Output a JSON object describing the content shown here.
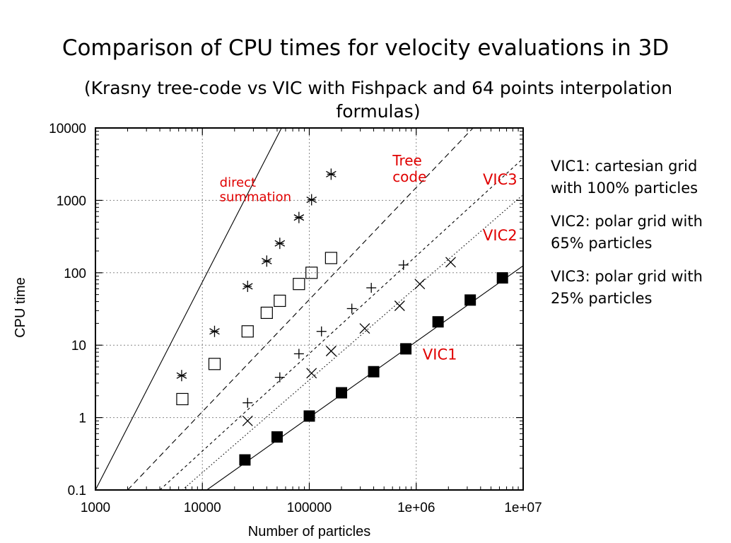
{
  "slide": {
    "title": "Comparison of CPU times for velocity evaluations in 3D",
    "subtitle": "(Krasny tree-code vs VIC with Fishpack and 64 points interpolation formulas)",
    "notes": [
      "VIC1: cartesian grid with 100% particles",
      "VIC2: polar grid with 65% particles",
      "VIC3: polar grid with 25% particles"
    ]
  },
  "colors": {
    "annotation": "#e00000",
    "axis": "#000000",
    "grid": "#888888"
  },
  "chart_data": {
    "type": "scatter",
    "xlabel": "Number of particles",
    "ylabel": "CPU time",
    "xscale": "log",
    "yscale": "log",
    "xlim": [
      1000,
      10000000
    ],
    "ylim": [
      0.1,
      10000
    ],
    "x_ticks": [
      1000,
      10000,
      100000,
      1000000,
      10000000
    ],
    "x_tick_labels": [
      "1000",
      "10000",
      "100000",
      "1e+06",
      "1e+07"
    ],
    "y_ticks": [
      0.1,
      1,
      10,
      100,
      1000,
      10000
    ],
    "y_tick_labels": [
      "0.1",
      "1",
      "10",
      "100",
      "1000",
      "10000"
    ],
    "grid": true,
    "series": [
      {
        "name": "direct summation",
        "marker": "asterisk",
        "line": "solid",
        "fit": [
          [
            1000,
            0.1
          ],
          [
            55000,
            10000
          ]
        ],
        "points": [
          [
            6400,
            3.8
          ],
          [
            13000,
            15.5
          ],
          [
            26500,
            65
          ],
          [
            40000,
            145
          ],
          [
            53000,
            255
          ],
          [
            80000,
            580
          ],
          [
            105000,
            1020
          ],
          [
            160000,
            2300
          ]
        ]
      },
      {
        "name": "Tree code",
        "marker": "square-open",
        "line": "dashed",
        "fit": [
          [
            2000,
            0.1
          ],
          [
            3400000,
            10000
          ]
        ],
        "points": [
          [
            6500,
            1.8
          ],
          [
            13000,
            5.5
          ],
          [
            26500,
            15.5
          ],
          [
            40000,
            28
          ],
          [
            53000,
            41
          ],
          [
            80000,
            70
          ],
          [
            105000,
            100
          ],
          [
            160000,
            160
          ]
        ]
      },
      {
        "name": "VIC3",
        "marker": "plus",
        "line": "short-dashed",
        "fit": [
          [
            4000,
            0.1
          ],
          [
            10000000,
            3800
          ]
        ],
        "points": [
          [
            26500,
            1.6
          ],
          [
            53000,
            3.6
          ],
          [
            80000,
            7.6
          ],
          [
            130000,
            15.5
          ],
          [
            250000,
            32
          ],
          [
            380000,
            62
          ],
          [
            760000,
            128
          ]
        ]
      },
      {
        "name": "VIC2",
        "marker": "cross",
        "line": "dotted",
        "fit": [
          [
            6500,
            0.1
          ],
          [
            10000000,
            1200
          ]
        ],
        "points": [
          [
            26500,
            0.9
          ],
          [
            105000,
            4.1
          ],
          [
            160000,
            8.3
          ],
          [
            330000,
            17
          ],
          [
            700000,
            35
          ],
          [
            1080000,
            70
          ],
          [
            2100000,
            140
          ]
        ]
      },
      {
        "name": "VIC1",
        "marker": "square-filled",
        "line": "solid",
        "fit": [
          [
            11000,
            0.1
          ],
          [
            10000000,
            125
          ]
        ],
        "points": [
          [
            25000,
            0.26
          ],
          [
            50000,
            0.54
          ],
          [
            100000,
            1.05
          ],
          [
            200000,
            2.2
          ],
          [
            400000,
            4.3
          ],
          [
            800000,
            8.9
          ],
          [
            1600000,
            21
          ],
          [
            3200000,
            42
          ],
          [
            6400000,
            85
          ]
        ]
      }
    ],
    "annotations": [
      {
        "lines": [
          "direct",
          "summation"
        ],
        "x": 14500,
        "y": 1550,
        "size": 18
      },
      {
        "lines": [
          "Tree",
          "code"
        ],
        "x": 600000,
        "y": 3050,
        "size": 20
      },
      {
        "lines": [
          "VIC3"
        ],
        "x": 4200000,
        "y": 1650,
        "size": 21
      },
      {
        "lines": [
          "VIC2"
        ],
        "x": 4200000,
        "y": 280,
        "size": 21
      },
      {
        "lines": [
          "VIC1"
        ],
        "x": 1150000,
        "y": 6.3,
        "size": 21
      }
    ]
  }
}
